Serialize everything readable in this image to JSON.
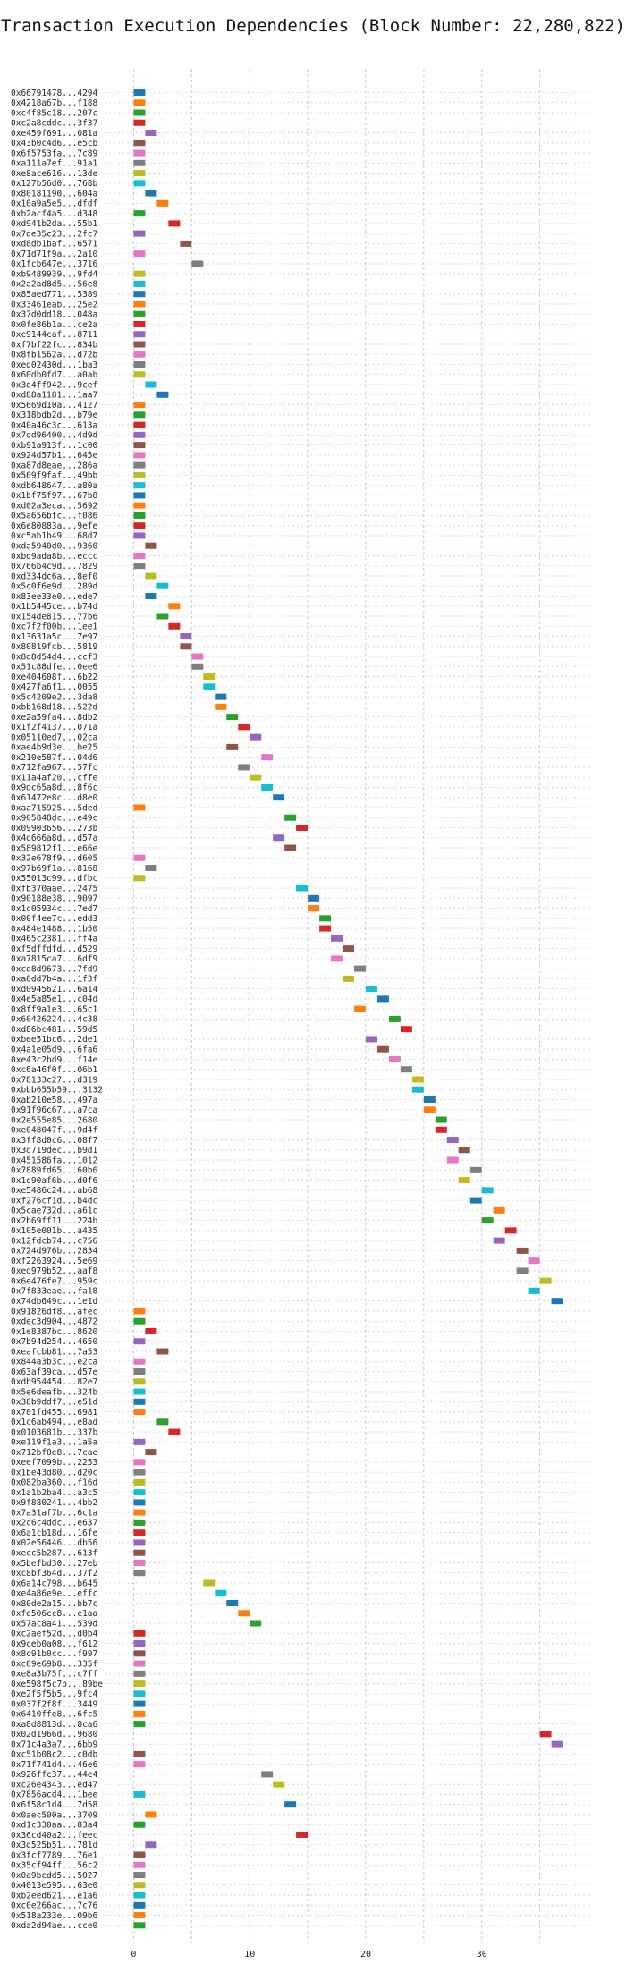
{
  "chart_data": {
    "type": "bar",
    "title": "Transaction Execution Dependencies (Block Number: 22,280,822)",
    "xlabel": "",
    "ylabel": "",
    "xlim": [
      -2.5,
      39.5
    ],
    "xticks": [
      0,
      10,
      20,
      30
    ],
    "grid": true,
    "colors": [
      "#1f77b4",
      "#ff7f0e",
      "#2ca02c",
      "#d62728",
      "#9467bd",
      "#8c564b",
      "#e377c2",
      "#7f7f7f",
      "#bcbd22",
      "#17becf"
    ],
    "categories": [
      "0x66791478...4294",
      "0x4218a67b...f188",
      "0xc4f85c18...207c",
      "0xc2a8cddc...3f37",
      "0xe459f691...081a",
      "0x43b0c4d6...e5cb",
      "0x6f5753fa...7c89",
      "0xa111a7ef...91a1",
      "0xe8ace616...13de",
      "0x127b56d0...768b",
      "0x80181190...604a",
      "0x10a9a5e5...dfdf",
      "0xb2acf4a5...d348",
      "0xd941b2da...55b1",
      "0x7de35c23...2fc7",
      "0xd8db1baf...6571",
      "0x71d71f9a...2a10",
      "0x1fcb647e...3716",
      "0xb9489939...9fd4",
      "0x2a2ad8d5...56e8",
      "0x85aed771...5389",
      "0x33461eab...25e2",
      "0x37d0dd18...048a",
      "0x0fe86b1a...ce2a",
      "0xc9144caf...8711",
      "0xf7bf22fc...834b",
      "0x8fb1562a...d72b",
      "0xed02430d...1ba3",
      "0x60db0fd7...a0ab",
      "0x3d4ff942...9cef",
      "0xd88a1181...1aa7",
      "0x5669d10a...4127",
      "0x318bdb2d...b79e",
      "0x40a46c3c...613a",
      "0x7dd96400...4d9d",
      "0xb91a913f...1c00",
      "0x924d57b1...645e",
      "0xa87d8eae...286a",
      "0x509f9faf...49bb",
      "0xdb648647...a80a",
      "0x1bf75f97...67b8",
      "0xd02a3eca...5692",
      "0x5a656bfc...f086",
      "0x6e80883a...9efe",
      "0xc5ab1b49...68d7",
      "0xda5940d0...9360",
      "0xbd9ada8b...eccc",
      "0x766b4c9d...7829",
      "0xd334dc6a...8ef0",
      "0x5c0f6e9d...289d",
      "0x83ee33e0...ede7",
      "0x1b5445ce...b74d",
      "0x154de815...77b6",
      "0xc7f2f00b...1ee1",
      "0x13631a5c...7e97",
      "0x80819fcb...5819",
      "0x8d8d54d4...ccf3",
      "0x51c88dfe...0ee6",
      "0xe404608f...6b22",
      "0x427fa6f1...0055",
      "0x5c4209e2...3da8",
      "0xbb168d18...522d",
      "0xe2a59fa4...8db2",
      "0x1f2f4137...071a",
      "0x05110ed7...02ca",
      "0xae4b9d3e...be25",
      "0x210e587f...04d6",
      "0x712fa967...57fc",
      "0x11a4af20...cffe",
      "0x9dc65a8d...8f6c",
      "0x61472e8c...d8e0",
      "0xaa715925...5ded",
      "0x905848dc...e49c",
      "0x09903656...273b",
      "0x4d666a8d...d57a",
      "0x589812f1...e66e",
      "0x32e678f9...d605",
      "0x97b69f1a...8168",
      "0x55013c99...dfbc",
      "0xfb370aae...2475",
      "0x90188e38...9097",
      "0x1c05934c...7ed7",
      "0x00f4ee7c...edd3",
      "0x484e1488...1b50",
      "0x465c2381...ff4a",
      "0xf5dffdfd...d529",
      "0xa7815ca7...6df9",
      "0xcd8d9673...7fd9",
      "0xa0dd7b4a...1f3f",
      "0xd0945621...6a14",
      "0x4e5a85e1...c04d",
      "0x8ff9a1e3...65c1",
      "0x60426224...4c38",
      "0xd86bc481...59d5",
      "0xbee51bc6...2de1",
      "0x4a1e05d9...6fa6",
      "0xe43c2bd9...f14e",
      "0xc6a46f0f...06b1",
      "0x78133c27...d319",
      "0xbbb655b59...3132",
      "0xab210e58...497a",
      "0x91f96c67...a7ca",
      "0x2e555e85...2680",
      "0xe048047f...9d4f",
      "0x3ff8d0c6...08f7",
      "0x3d719dec...b9d1",
      "0x451586fa...1012",
      "0x7889fd65...60b6",
      "0x1d90af6b...d0f6",
      "0xe5486c24...ab68",
      "0xf276cf1d...b4dc",
      "0x5cae732d...a61c",
      "0x2b69ff11...224b",
      "0x105e001b...a435",
      "0x12fdcb74...c756",
      "0x724d976b...2834",
      "0xf2263924...5e69",
      "0xed979b52...aaf8",
      "0x6e476fe7...959c",
      "0x7f833eae...fa18",
      "0x74db649c...1e1d",
      "0x91826df8...afec",
      "0xdec3d904...4872",
      "0x1e8387bc...8620",
      "0x7b94d254...4650",
      "0xeafcbb81...7a53",
      "0x844a3b3c...e2ca",
      "0x63af39ca...d57e",
      "0xdb954454...82e7",
      "0x5e6deafb...324b",
      "0x38b9ddf7...e51d",
      "0x701fd455...6981",
      "0x1c6ab494...e8ad",
      "0x0103681b...337b",
      "0xe119f1a3...1a5a",
      "0x712bf0e8...7cae",
      "0xeef7099b...2253",
      "0x1be43d80...d20c",
      "0x082ba360...f16d",
      "0x1a1b2ba4...a3c5",
      "0x9f880241...4bb2",
      "0x7a31af7b...6c1a",
      "0x2c6c4ddc...e637",
      "0x6a1cb18d...16fe",
      "0x02e56446...db56",
      "0xecc5b287...613f",
      "0x5befbd30...27eb",
      "0xc8bf364d...37f2",
      "0x6a14c798...b645",
      "0xe4a86e9e...effc",
      "0x80de2a15...bb7c",
      "0xfe506cc8...e1aa",
      "0x57ac8a41...539d",
      "0xc2aef52d...d0b4",
      "0x9ceb0a08...f612",
      "0x8c91b0cc...f997",
      "0xc09e69b8...335f",
      "0xe8a3b75f...c7ff",
      "0xe598f5c7b...89be",
      "0xe2f5f5b5...9fc4",
      "0x037f2f8f...3449",
      "0x6410ffe8...6fc5",
      "0xa8d8813d...8ca6",
      "0x02d1966d...9680",
      "0x71c4a3a7...6bb9",
      "0xc51b08c2...c0db",
      "0x71f741d4...46e6",
      "0x926ffc37...44e4",
      "0xc26e4343...ed47",
      "0x7856acd4...1bee",
      "0x6f58c1d4...7d58",
      "0x0aec500a...3709",
      "0xd1c330aa...83a4",
      "0x36cd40a2...feec",
      "0x3d525b51...781d",
      "0x3fcf7789...76e1",
      "0x35cf94ff...56c2",
      "0x0a9bcdd5...5027",
      "0x4013e595...63e0",
      "0xb2eed621...e1a6",
      "0xc0e266ac...7c76",
      "0x518a233e...09b6",
      "0xda2d94ae...cce0"
    ],
    "values": [
      0,
      0,
      0,
      0,
      1,
      0,
      0,
      0,
      0,
      0,
      1,
      2,
      0,
      3,
      0,
      4,
      0,
      5,
      0,
      0,
      0,
      0,
      0,
      0,
      0,
      0,
      0,
      0,
      0,
      1,
      2,
      0,
      0,
      0,
      0,
      0,
      0,
      0,
      0,
      0,
      0,
      0,
      0,
      0,
      0,
      1,
      0,
      0,
      1,
      2,
      1,
      3,
      2,
      3,
      4,
      4,
      5,
      5,
      6,
      6,
      7,
      7,
      8,
      9,
      10,
      8,
      11,
      9,
      10,
      11,
      12,
      0,
      13,
      14,
      12,
      13,
      0,
      1,
      0,
      14,
      15,
      15,
      16,
      16,
      17,
      18,
      17,
      19,
      18,
      20,
      21,
      19,
      22,
      23,
      20,
      21,
      22,
      23,
      24,
      24,
      25,
      25,
      26,
      26,
      27,
      28,
      27,
      29,
      28,
      30,
      29,
      31,
      30,
      32,
      31,
      33,
      34,
      33,
      35,
      34,
      36,
      0,
      0,
      1,
      0,
      2,
      0,
      0,
      0,
      0,
      0,
      0,
      2,
      3,
      0,
      1,
      0,
      0,
      0,
      0,
      0,
      0,
      0,
      0,
      0,
      0,
      0,
      0,
      6,
      7,
      8,
      9,
      10,
      0,
      0,
      0,
      0,
      0,
      0,
      0,
      0,
      0,
      0,
      35,
      36,
      0,
      0,
      11,
      12,
      0,
      13,
      1,
      0,
      14,
      1,
      0,
      0,
      0,
      0,
      0,
      0,
      0,
      0
    ],
    "duration": 1
  }
}
